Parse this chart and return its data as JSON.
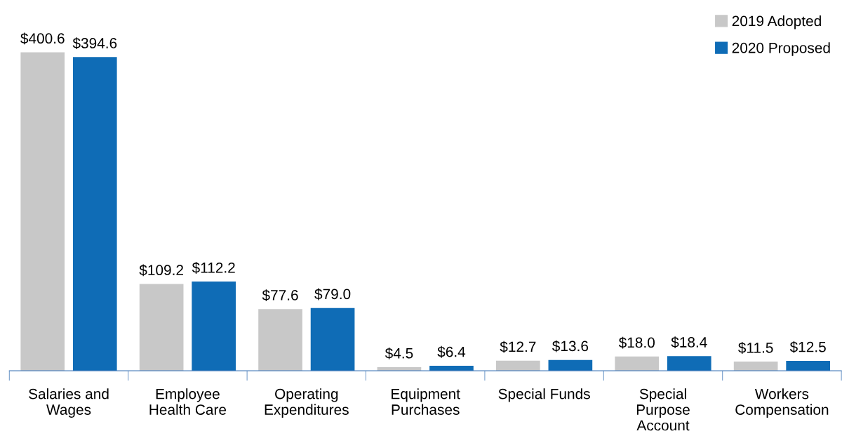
{
  "chart_data": {
    "type": "bar",
    "categories": [
      "Salaries and\nWages",
      "Employee\nHealth Care",
      "Operating\nExpenditures",
      "Equipment\nPurchases",
      "Special Funds",
      "Special\nPurpose\nAccount",
      "Workers\nCompensation"
    ],
    "series": [
      {
        "name": "2019 Adopted",
        "color": "#c8c8c8",
        "values": [
          400.6,
          109.2,
          77.6,
          4.5,
          12.7,
          18.0,
          11.5
        ],
        "value_labels": [
          "$400.6",
          "$109.2",
          "$77.6",
          "$4.5",
          "$12.7",
          "$18.0",
          "$11.5"
        ]
      },
      {
        "name": "2020 Proposed",
        "color": "#0f6cb6",
        "values": [
          394.6,
          112.2,
          79.0,
          6.4,
          13.6,
          18.4,
          12.5
        ],
        "value_labels": [
          "$394.6",
          "$112.2",
          "$79.0",
          "$6.4",
          "$13.6",
          "$18.4",
          "$12.5"
        ]
      }
    ],
    "legend": "top right",
    "grid": false
  }
}
